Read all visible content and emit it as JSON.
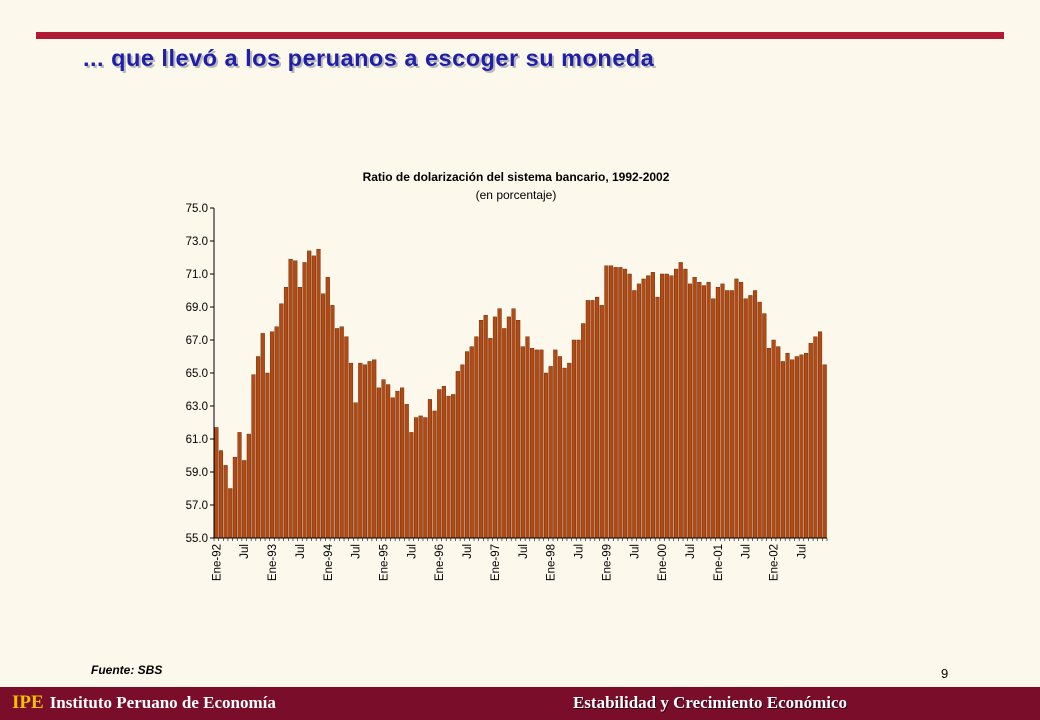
{
  "slide": {
    "title": "... que llevó a los peruanos a escoger su moneda",
    "source": "Fuente: SBS",
    "page_number": "9"
  },
  "footer": {
    "abbr": "IPE",
    "institute": "Instituto Peruano de Economía",
    "tagline": "Estabilidad y Crecimiento Económico"
  },
  "colors": {
    "bar_fill": "#b34a12",
    "bar_stroke": "#5a1f05",
    "accent_rule": "#b01a32",
    "footer_bg": "#7a0e2a",
    "title_blue": "#1f1fa8"
  },
  "chart_data": {
    "type": "bar",
    "title": "Ratio de dolarización del sistema bancario, 1992-2002",
    "subtitle": "(en porcentaje)",
    "xlabel": "",
    "ylabel": "",
    "ylim": [
      55.0,
      75.0
    ],
    "y_ticks": [
      "55.0",
      "57.0",
      "59.0",
      "61.0",
      "63.0",
      "65.0",
      "67.0",
      "69.0",
      "71.0",
      "73.0",
      "75.0"
    ],
    "x_tick_labels": [
      "Ene-92",
      "Jul",
      "Ene-93",
      "Jul",
      "Ene-94",
      "Jul",
      "Ene-95",
      "Jul",
      "Ene-96",
      "Jul",
      "Ene-97",
      "Jul",
      "Ene-98",
      "Jul",
      "Ene-99",
      "Jul",
      "Ene-00",
      "Jul",
      "Ene-01",
      "Jul",
      "Ene-02",
      "Jul"
    ],
    "tick_every": 6,
    "grid": false,
    "legend": "none",
    "values": [
      61.7,
      60.3,
      59.4,
      58.0,
      59.9,
      61.4,
      59.7,
      61.3,
      64.9,
      66.0,
      67.4,
      65.0,
      67.5,
      67.8,
      69.2,
      70.2,
      71.9,
      71.8,
      70.2,
      71.7,
      72.4,
      72.1,
      72.5,
      69.8,
      70.8,
      69.1,
      67.7,
      67.8,
      67.2,
      65.6,
      63.2,
      65.6,
      65.5,
      65.7,
      65.8,
      64.1,
      64.6,
      64.3,
      63.5,
      63.9,
      64.1,
      63.1,
      61.4,
      62.3,
      62.4,
      62.3,
      63.4,
      62.7,
      64.0,
      64.2,
      63.6,
      63.7,
      65.1,
      65.5,
      66.3,
      66.6,
      67.2,
      68.2,
      68.5,
      67.1,
      68.4,
      68.9,
      67.7,
      68.4,
      68.9,
      68.2,
      66.6,
      67.2,
      66.5,
      66.4,
      66.4,
      65.0,
      65.4,
      66.4,
      66.0,
      65.3,
      65.6,
      67.0,
      67.0,
      68.0,
      69.4,
      69.4,
      69.6,
      69.1,
      71.5,
      71.5,
      71.4,
      71.4,
      71.3,
      71.0,
      70.0,
      70.4,
      70.7,
      70.9,
      71.1,
      69.6,
      71.0,
      71.0,
      70.9,
      71.3,
      71.7,
      71.3,
      70.4,
      70.8,
      70.5,
      70.3,
      70.5,
      69.5,
      70.2,
      70.4,
      70.0,
      70.0,
      70.7,
      70.5,
      69.5,
      69.7,
      70.0,
      69.3,
      68.6,
      66.5,
      67.0,
      66.6,
      65.7,
      66.2,
      65.8,
      66.0,
      66.1,
      66.2,
      66.8,
      67.2,
      67.5,
      65.5
    ]
  }
}
